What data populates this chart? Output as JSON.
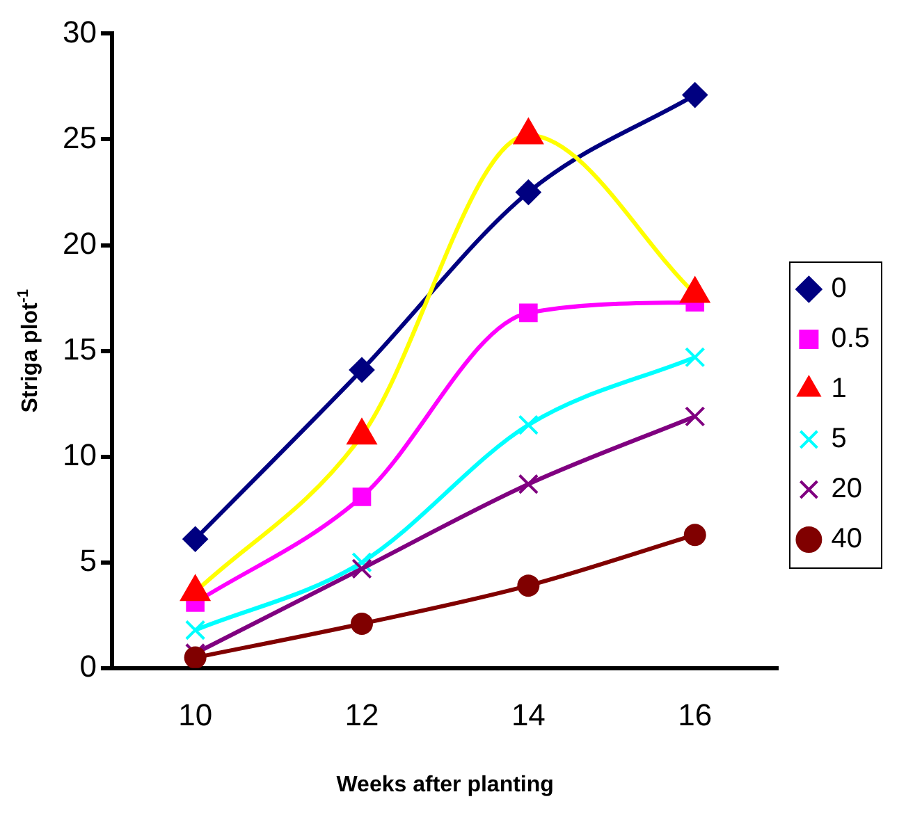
{
  "chart_data": {
    "type": "line",
    "xlabel": "Weeks after planting",
    "ylabel": "Striga plot$^{-1}$",
    "categories": [
      "10",
      "12",
      "14",
      "16"
    ],
    "series": [
      {
        "name": "0",
        "color": "#000080",
        "marker": "diamond",
        "values": [
          6.1,
          14.1,
          22.5,
          27.1
        ]
      },
      {
        "name": "0.5",
        "color": "#ff00ff",
        "marker": "square",
        "values": [
          3.1,
          8.1,
          16.8,
          17.3
        ]
      },
      {
        "name": "1",
        "color": "#ffff00",
        "colors": [
          "#ff0000",
          "#ff0000",
          "#ff0000",
          "#ff0000"
        ],
        "marker": "triangle",
        "values": [
          3.6,
          11.0,
          25.2,
          17.7
        ]
      },
      {
        "name": "5",
        "color": "#00ffff",
        "marker": "cross",
        "values": [
          1.8,
          5.0,
          11.5,
          14.7
        ]
      },
      {
        "name": "20",
        "color": "#800080",
        "marker": "cross",
        "values": [
          0.7,
          4.7,
          8.7,
          11.9
        ]
      },
      {
        "name": "40",
        "color": "#800000",
        "marker": "circle",
        "values": [
          0.5,
          2.1,
          3.9,
          6.3
        ]
      }
    ],
    "ylim": [
      0,
      30
    ],
    "yticks": [
      0,
      5,
      10,
      15,
      20,
      25,
      30
    ],
    "legend": "right"
  }
}
